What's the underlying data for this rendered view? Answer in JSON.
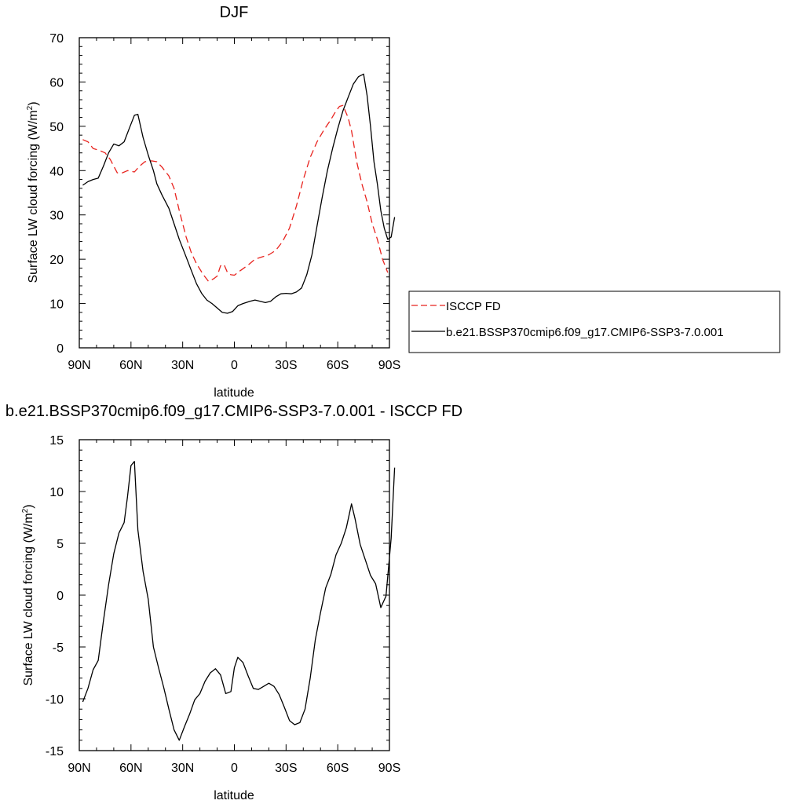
{
  "chart_data": [
    {
      "type": "line",
      "title": "DJF",
      "xlabel": "latitude",
      "ylabel_main": "Surface LW cloud forcing (W/m",
      "ylabel_sup": "2",
      "ylabel_close": ")",
      "xlim": [
        90,
        -90
      ],
      "ylim": [
        0,
        70
      ],
      "x_ticks": [
        {
          "value": 90,
          "label": "90N"
        },
        {
          "value": 60,
          "label": "60N"
        },
        {
          "value": 30,
          "label": "30N"
        },
        {
          "value": 0,
          "label": "0"
        },
        {
          "value": -30,
          "label": "30S"
        },
        {
          "value": -60,
          "label": "60S"
        },
        {
          "value": -90,
          "label": "90S"
        }
      ],
      "y_ticks": [
        {
          "value": 0,
          "label": "0"
        },
        {
          "value": 10,
          "label": "10"
        },
        {
          "value": 20,
          "label": "20"
        },
        {
          "value": 30,
          "label": "30"
        },
        {
          "value": 40,
          "label": "40"
        },
        {
          "value": 50,
          "label": "50"
        },
        {
          "value": 60,
          "label": "60"
        },
        {
          "value": 70,
          "label": "70"
        }
      ],
      "legend_placement": "right",
      "series": [
        {
          "name": "ISCCP FD",
          "color": "#e8231e",
          "dash": "dashed",
          "points": [
            [
              88,
              47
            ],
            [
              85,
              46.5
            ],
            [
              82,
              45
            ],
            [
              78,
              44.5
            ],
            [
              75,
              44
            ],
            [
              72,
              42.5
            ],
            [
              68,
              39.5
            ],
            [
              65,
              39.5
            ],
            [
              62,
              40
            ],
            [
              58,
              39.7
            ],
            [
              55,
              41
            ],
            [
              52,
              42
            ],
            [
              48,
              42.2
            ],
            [
              45,
              42
            ],
            [
              42,
              40.8
            ],
            [
              38,
              38.8
            ],
            [
              35,
              36
            ],
            [
              32,
              31
            ],
            [
              28,
              25
            ],
            [
              25,
              21.5
            ],
            [
              22,
              19
            ],
            [
              18,
              16.5
            ],
            [
              15,
              15
            ],
            [
              12,
              15.6
            ],
            [
              10,
              16.2
            ],
            [
              8,
              18.5
            ],
            [
              6,
              18.8
            ],
            [
              4,
              17
            ],
            [
              2,
              16.5
            ],
            [
              0,
              16.4
            ],
            [
              -3,
              17.3
            ],
            [
              -8,
              18.7
            ],
            [
              -12,
              20
            ],
            [
              -16,
              20.5
            ],
            [
              -20,
              21
            ],
            [
              -24,
              22
            ],
            [
              -28,
              24
            ],
            [
              -32,
              27
            ],
            [
              -36,
              32
            ],
            [
              -40,
              38
            ],
            [
              -44,
              43
            ],
            [
              -48,
              46.5
            ],
            [
              -52,
              49.2
            ],
            [
              -56,
              51.5
            ],
            [
              -59,
              53.5
            ],
            [
              -61,
              54.5
            ],
            [
              -63,
              54.7
            ],
            [
              -66,
              52
            ],
            [
              -68,
              49
            ],
            [
              -71,
              42
            ],
            [
              -74,
              37
            ],
            [
              -77,
              33
            ],
            [
              -80,
              28
            ],
            [
              -83,
              24.5
            ],
            [
              -86,
              20
            ],
            [
              -89,
              17
            ]
          ]
        },
        {
          "name": "b.e21.BSSP370cmip6.f09_g17.CMIP6-SSP3-7.0.001",
          "color": "#000000",
          "dash": "solid",
          "points": [
            [
              88,
              36.7
            ],
            [
              85,
              37.5
            ],
            [
              82,
              38
            ],
            [
              79,
              38.3
            ],
            [
              76,
              41
            ],
            [
              73,
              44
            ],
            [
              70,
              46
            ],
            [
              67,
              45.6
            ],
            [
              64,
              46.5
            ],
            [
              61,
              49.5
            ],
            [
              58,
              52.5
            ],
            [
              56,
              52.7
            ],
            [
              53,
              47.5
            ],
            [
              50,
              43.5
            ],
            [
              47,
              40
            ],
            [
              45,
              37
            ],
            [
              42,
              34.5
            ],
            [
              38,
              31.5
            ],
            [
              35,
              28
            ],
            [
              32,
              24.5
            ],
            [
              28,
              20.5
            ],
            [
              25,
              17.5
            ],
            [
              22,
              14.5
            ],
            [
              19,
              12.3
            ],
            [
              16,
              10.8
            ],
            [
              13,
              10
            ],
            [
              10,
              9
            ],
            [
              7,
              8
            ],
            [
              4,
              7.8
            ],
            [
              1,
              8.2
            ],
            [
              -2,
              9.5
            ],
            [
              -5,
              10
            ],
            [
              -9,
              10.5
            ],
            [
              -12,
              10.8
            ],
            [
              -15,
              10.5
            ],
            [
              -18,
              10.2
            ],
            [
              -21,
              10.5
            ],
            [
              -24,
              11.5
            ],
            [
              -27,
              12.2
            ],
            [
              -30,
              12.3
            ],
            [
              -33,
              12.2
            ],
            [
              -36,
              12.6
            ],
            [
              -39,
              13.5
            ],
            [
              -42,
              16.5
            ],
            [
              -45,
              21
            ],
            [
              -48,
              27.5
            ],
            [
              -51,
              34
            ],
            [
              -54,
              40
            ],
            [
              -57,
              45
            ],
            [
              -60,
              49.5
            ],
            [
              -63,
              53.5
            ],
            [
              -66,
              56.5
            ],
            [
              -69,
              59.5
            ],
            [
              -72,
              61.2
            ],
            [
              -75,
              61.8
            ],
            [
              -77,
              57
            ],
            [
              -79,
              50
            ],
            [
              -81,
              42
            ],
            [
              -83,
              37
            ],
            [
              -85,
              31
            ],
            [
              -87,
              27
            ],
            [
              -89,
              24.5
            ],
            [
              -91,
              25
            ],
            [
              -93,
              29.5
            ]
          ]
        }
      ]
    },
    {
      "type": "line",
      "title": "b.e21.BSSP370cmip6.f09_g17.CMIP6-SSP3-7.0.001 - ISCCP FD",
      "xlabel": "latitude",
      "ylabel_main": "Surface LW cloud forcing (W/m",
      "ylabel_sup": "2",
      "ylabel_close": ")",
      "xlim": [
        90,
        -90
      ],
      "ylim": [
        -15,
        15
      ],
      "x_ticks": [
        {
          "value": 90,
          "label": "90N"
        },
        {
          "value": 60,
          "label": "60N"
        },
        {
          "value": 30,
          "label": "30N"
        },
        {
          "value": 0,
          "label": "0"
        },
        {
          "value": -30,
          "label": "30S"
        },
        {
          "value": -60,
          "label": "60S"
        },
        {
          "value": -90,
          "label": "90S"
        }
      ],
      "y_ticks": [
        {
          "value": -15,
          "label": "-15"
        },
        {
          "value": -10,
          "label": "-10"
        },
        {
          "value": -5,
          "label": "-5"
        },
        {
          "value": 0,
          "label": "0"
        },
        {
          "value": 5,
          "label": "5"
        },
        {
          "value": 10,
          "label": "10"
        },
        {
          "value": 15,
          "label": "15"
        }
      ],
      "series": [
        {
          "color": "#000000",
          "dash": "solid",
          "points": [
            [
              88,
              -10.3
            ],
            [
              85,
              -9
            ],
            [
              82,
              -7.2
            ],
            [
              79,
              -6.3
            ],
            [
              76,
              -2.5
            ],
            [
              73,
              1
            ],
            [
              70,
              4
            ],
            [
              67,
              6
            ],
            [
              64,
              7
            ],
            [
              62,
              9.5
            ],
            [
              60,
              12.5
            ],
            [
              58,
              12.9
            ],
            [
              56,
              6.3
            ],
            [
              53,
              2.3
            ],
            [
              50,
              -0.4
            ],
            [
              47,
              -5
            ],
            [
              44,
              -7
            ],
            [
              41,
              -8.9
            ],
            [
              38,
              -11
            ],
            [
              35,
              -13
            ],
            [
              32,
              -14
            ],
            [
              29,
              -12.7
            ],
            [
              26,
              -11.5
            ],
            [
              23,
              -10.1
            ],
            [
              20,
              -9.5
            ],
            [
              17,
              -8.3
            ],
            [
              14,
              -7.5
            ],
            [
              11,
              -7.1
            ],
            [
              8,
              -7.7
            ],
            [
              5,
              -9.5
            ],
            [
              2,
              -9.3
            ],
            [
              0,
              -7
            ],
            [
              -2,
              -6
            ],
            [
              -5,
              -6.5
            ],
            [
              -8,
              -7.8
            ],
            [
              -11,
              -9
            ],
            [
              -14,
              -9.1
            ],
            [
              -17,
              -8.8
            ],
            [
              -20,
              -8.5
            ],
            [
              -23,
              -8.8
            ],
            [
              -26,
              -9.6
            ],
            [
              -29,
              -10.8
            ],
            [
              -32,
              -12.1
            ],
            [
              -35,
              -12.5
            ],
            [
              -38,
              -12.3
            ],
            [
              -41,
              -11
            ],
            [
              -44,
              -8
            ],
            [
              -47,
              -4.3
            ],
            [
              -50,
              -1.7
            ],
            [
              -53,
              0.7
            ],
            [
              -56,
              2
            ],
            [
              -59,
              3.9
            ],
            [
              -62,
              5
            ],
            [
              -65,
              6.5
            ],
            [
              -68,
              8.8
            ],
            [
              -70,
              7.4
            ],
            [
              -73,
              4.9
            ],
            [
              -76,
              3.4
            ],
            [
              -79,
              1.9
            ],
            [
              -82,
              1.1
            ],
            [
              -85,
              -1.2
            ],
            [
              -88,
              -0.1
            ],
            [
              -91,
              5.5
            ],
            [
              -93,
              12.3
            ]
          ]
        }
      ]
    }
  ]
}
